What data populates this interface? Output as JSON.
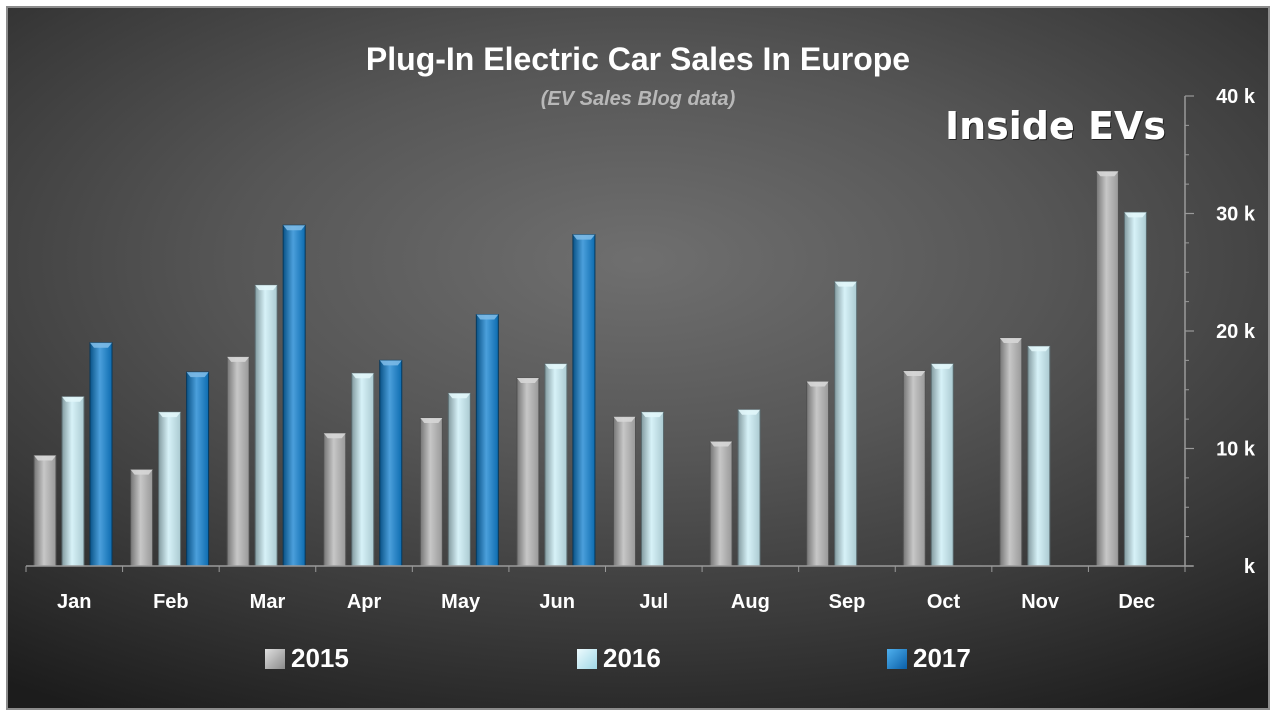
{
  "chart_data": {
    "type": "bar",
    "title": "Plug-In Electric Car Sales In Europe",
    "subtitle": "(EV Sales Blog data)",
    "watermark": "Inside EVs",
    "categories": [
      "Jan",
      "Feb",
      "Mar",
      "Apr",
      "May",
      "Jun",
      "Jul",
      "Aug",
      "Sep",
      "Oct",
      "Nov",
      "Dec"
    ],
    "series": [
      {
        "name": "2015",
        "color": "#b4b4b4",
        "values": [
          9400,
          8200,
          17800,
          11300,
          12600,
          16000,
          12700,
          10600,
          15700,
          16600,
          19400,
          33600
        ]
      },
      {
        "name": "2016",
        "color": "#c9eef6",
        "values": [
          14400,
          13100,
          23900,
          16400,
          14700,
          17200,
          13100,
          13300,
          24200,
          17200,
          18700,
          30100
        ]
      },
      {
        "name": "2017",
        "color": "#0f7fcf",
        "values": [
          19000,
          16500,
          29000,
          17500,
          21400,
          28200,
          null,
          null,
          null,
          null,
          null,
          null
        ]
      }
    ],
    "ylim": [
      0,
      40000
    ],
    "y_ticks": [
      {
        "value": 40000,
        "label": "40 k"
      },
      {
        "value": 30000,
        "label": "30 k"
      },
      {
        "value": 20000,
        "label": "20 k"
      },
      {
        "value": 10000,
        "label": "10 k"
      },
      {
        "value": 0,
        "label": "k"
      }
    ],
    "y_axis_position": "right",
    "legend_position": "bottom",
    "grid": false
  }
}
